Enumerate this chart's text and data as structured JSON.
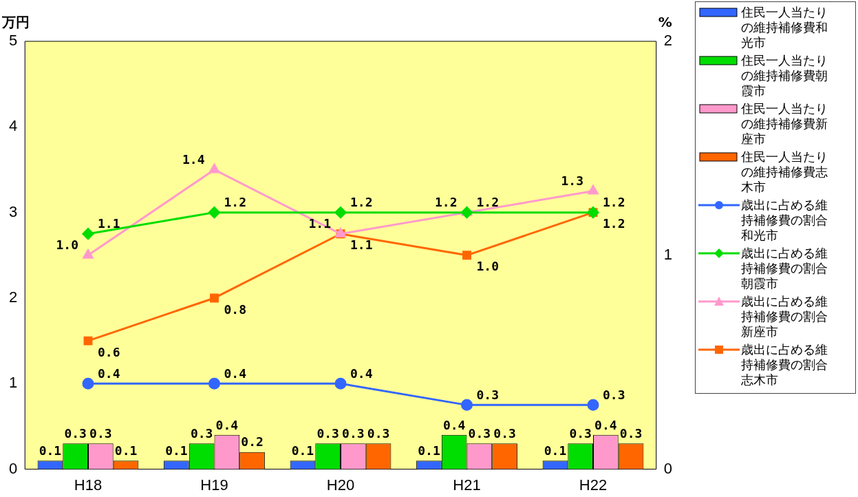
{
  "chart_data": {
    "type": "bar",
    "ylabel": "万円",
    "y2label": "%",
    "categories": [
      "H18",
      "H19",
      "H20",
      "H21",
      "H22"
    ],
    "ylim": [
      0,
      5
    ],
    "yticks": [
      0,
      1,
      2,
      3,
      4,
      5
    ],
    "y2lim": [
      0,
      2
    ],
    "y2ticks": [
      0,
      1,
      2
    ],
    "grid": false,
    "legend": "right",
    "series": [
      {
        "name": "住民一人当たりの維持補修費和光市",
        "color": "#3366ff",
        "values": [
          0.1,
          0.1,
          0.1,
          0.1,
          0.1
        ],
        "value_labels": [
          "0.1",
          "0.1",
          "0.1",
          "0.1",
          "0.1"
        ]
      },
      {
        "name": "住民一人当たりの維持補修費朝霞市",
        "color": "#00dd00",
        "values": [
          0.3,
          0.3,
          0.3,
          0.4,
          0.3
        ],
        "value_labels": [
          "0.3",
          "0.3",
          "0.3",
          "0.4",
          "0.3"
        ]
      },
      {
        "name": "住民一人当たりの維持補修費新座市",
        "color": "#ff99cc",
        "values": [
          0.3,
          0.4,
          0.3,
          0.3,
          0.4
        ],
        "value_labels": [
          "0.3",
          "0.4",
          "0.3",
          "0.3",
          "0.4"
        ]
      },
      {
        "name": "住民一人当たりの維持補修費志木市",
        "color": "#ff6600",
        "values": [
          0.1,
          0.2,
          0.3,
          0.3,
          0.3
        ],
        "value_labels": [
          "0.1",
          "0.2",
          "0.3",
          "0.3",
          "0.3"
        ]
      },
      {
        "name": "歳出に占める維持補修費の割合和光市",
        "type": "line",
        "axis": "y2",
        "marker": "circle",
        "color": "#3366ff",
        "values": [
          0.4,
          0.4,
          0.4,
          0.3,
          0.3
        ],
        "value_labels": [
          "0.4",
          "0.4",
          "0.4",
          "0.3",
          "0.3"
        ]
      },
      {
        "name": "歳出に占める維持補修費の割合朝霞市",
        "type": "line",
        "axis": "y2",
        "marker": "diamond",
        "color": "#00dd00",
        "values": [
          1.1,
          1.2,
          1.2,
          1.2,
          1.2
        ],
        "value_labels": [
          "1.1",
          "1.2",
          "1.2",
          "1.2",
          "1.2"
        ]
      },
      {
        "name": "歳出に占める維持補修費の割合新座市",
        "type": "line",
        "axis": "y2",
        "marker": "triangle",
        "color": "#ff99cc",
        "values": [
          1.0,
          1.4,
          1.1,
          1.2,
          1.3
        ],
        "value_labels": [
          "1.0",
          "1.4",
          "1.1",
          "1.2",
          "1.3"
        ]
      },
      {
        "name": "歳出に占める維持補修費の割合志木市",
        "type": "line",
        "axis": "y2",
        "marker": "square",
        "color": "#ff6600",
        "values": [
          0.6,
          0.8,
          1.1,
          1.0,
          1.2
        ],
        "value_labels": [
          "0.6",
          "0.8",
          "1.1",
          "1.0",
          "1.2"
        ]
      }
    ]
  }
}
